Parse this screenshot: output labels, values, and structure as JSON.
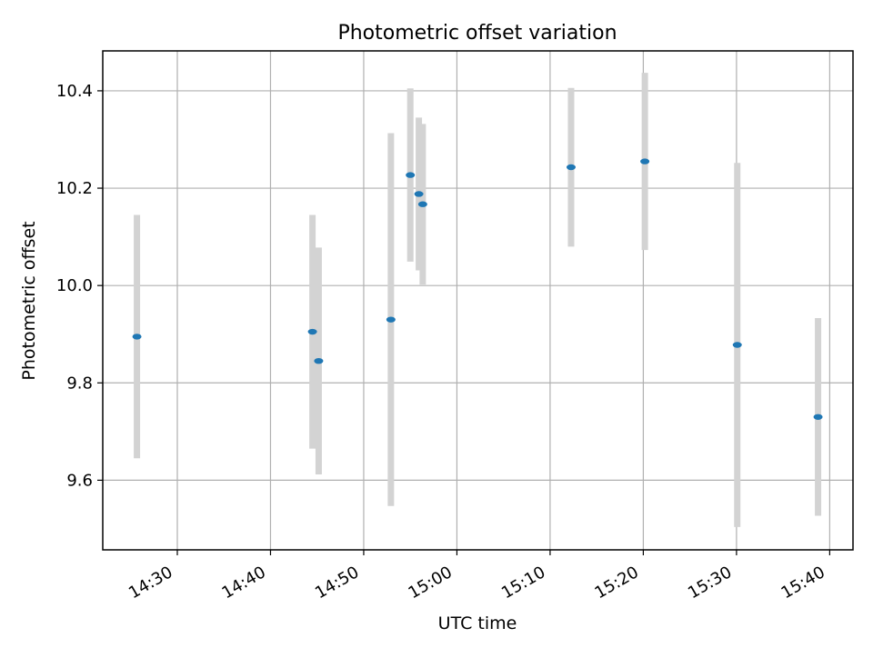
{
  "chart_data": {
    "type": "scatter",
    "title": "Photometric offset variation",
    "xlabel": "UTC time",
    "ylabel": "Photometric offset",
    "x_tick_labels": [
      "14:30",
      "14:40",
      "14:50",
      "15:00",
      "15:10",
      "15:20",
      "15:30",
      "15:40"
    ],
    "x_ticks": [
      "14:30",
      "14:40",
      "14:50",
      "15:00",
      "15:10",
      "15:20",
      "15:30",
      "15:40"
    ],
    "y_ticks": [
      9.6,
      9.8,
      10.0,
      10.2,
      10.4
    ],
    "y_tick_labels": [
      "9.6",
      "9.8",
      "10.0",
      "10.2",
      "10.4"
    ],
    "xlim": [
      "14:22:00",
      "15:42:30"
    ],
    "ylim": [
      9.457,
      10.482
    ],
    "grid": true,
    "colors": {
      "point": "#1f77b4",
      "errorbar": "#d3d3d3",
      "grid": "#b0b0b0"
    },
    "points": [
      {
        "time": "14:25:40",
        "y": 9.895,
        "yerr": 0.25
      },
      {
        "time": "14:44:30",
        "y": 9.905,
        "yerr": 0.24
      },
      {
        "time": "14:45:10",
        "y": 9.845,
        "yerr": 0.233
      },
      {
        "time": "14:52:55",
        "y": 9.93,
        "yerr": 0.383
      },
      {
        "time": "14:55:00",
        "y": 10.227,
        "yerr": 0.178
      },
      {
        "time": "14:55:55",
        "y": 10.188,
        "yerr": 0.157
      },
      {
        "time": "14:56:20",
        "y": 10.167,
        "yerr": 0.165
      },
      {
        "time": "15:12:15",
        "y": 10.243,
        "yerr": 0.163
      },
      {
        "time": "15:20:10",
        "y": 10.255,
        "yerr": 0.182
      },
      {
        "time": "15:30:05",
        "y": 9.878,
        "yerr": 0.374
      },
      {
        "time": "15:38:45",
        "y": 9.73,
        "yerr": 0.203
      }
    ]
  }
}
